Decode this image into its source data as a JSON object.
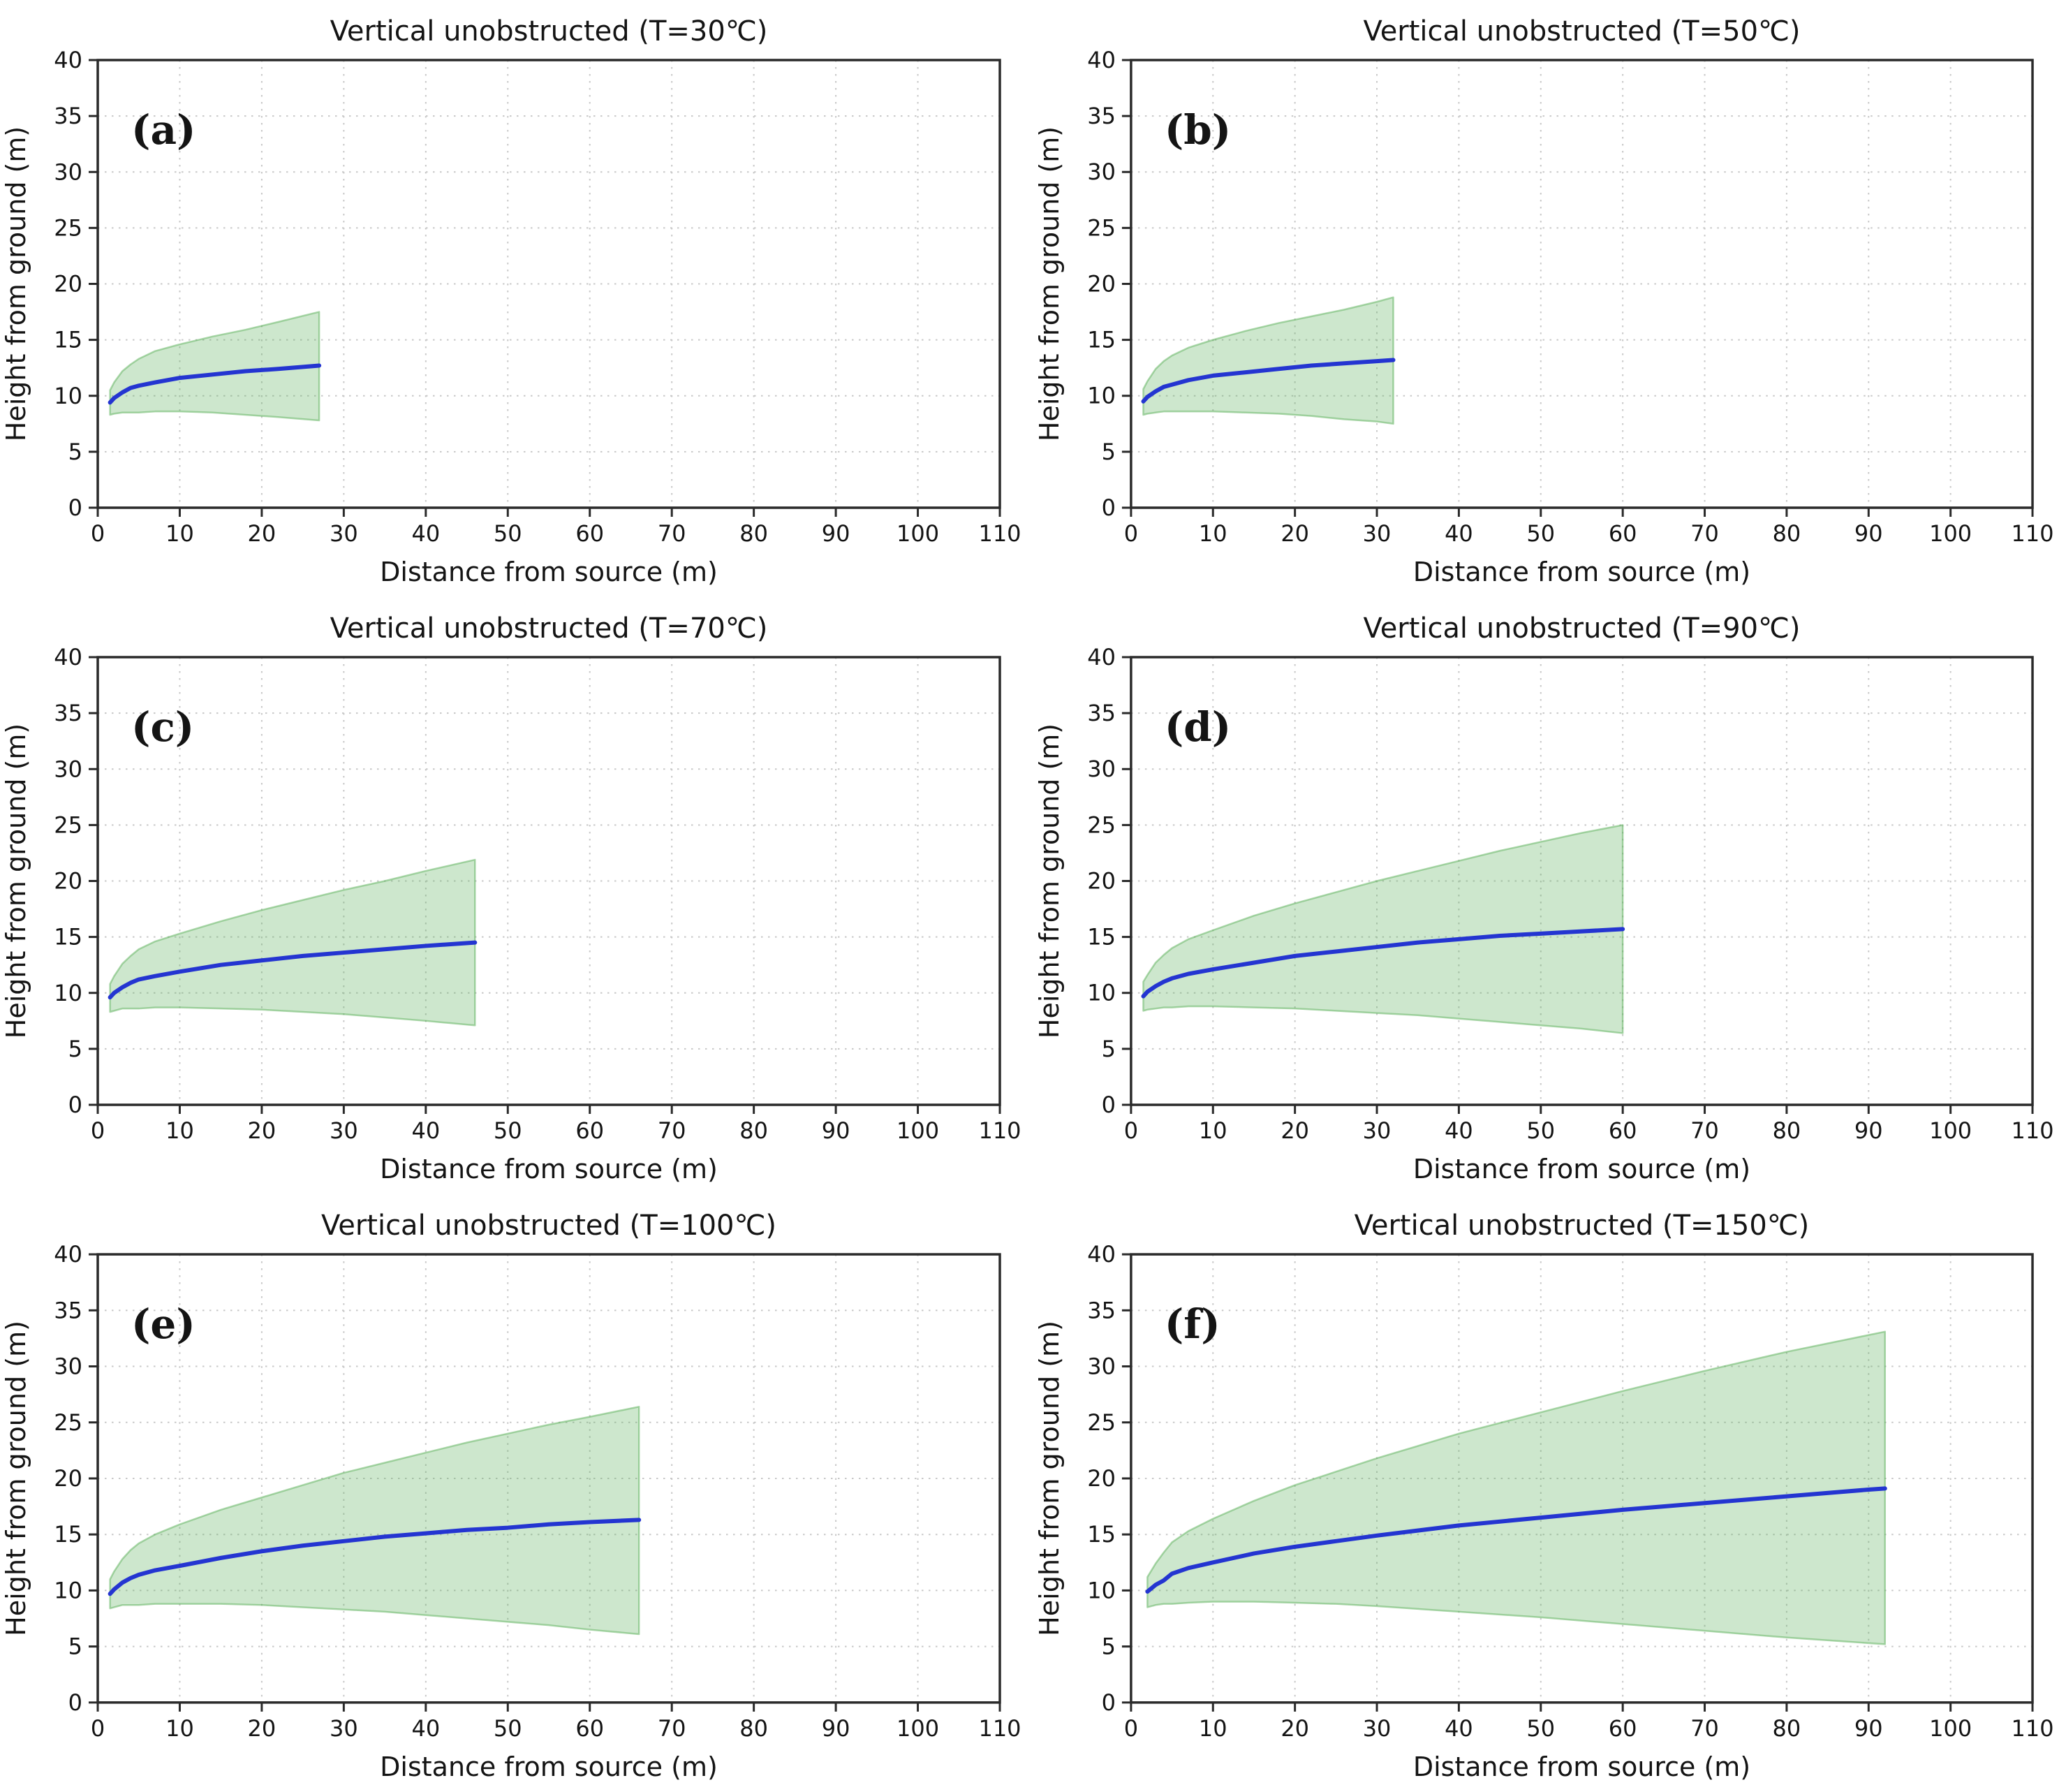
{
  "figure": {
    "x_label": "Distance from source (m)",
    "y_label": "Height from ground (m)",
    "xlim": [
      0,
      110
    ],
    "ylim": [
      0,
      40
    ],
    "x_ticks": [
      0,
      10,
      20,
      30,
      40,
      50,
      60,
      70,
      80,
      90,
      100,
      110
    ],
    "y_ticks": [
      0,
      5,
      10,
      15,
      20,
      25,
      30,
      35,
      40
    ],
    "colors": {
      "mean_line": "#2435d1",
      "band_green": "#5aaf58",
      "band_fill_opacity": 0.3,
      "band_edge_opacity": 0.5,
      "grid": "#c8c8c8",
      "spine": "#2a2a2a",
      "text": "#141414",
      "background": "#ffffff"
    }
  },
  "chart_data": [
    {
      "type": "line",
      "panel": "a",
      "label": "(a)",
      "title": "Vertical unobstructed (T=30℃)",
      "xlabel": "Distance from source (m)",
      "ylabel": "Height from ground (m)",
      "xlim": [
        0,
        110
      ],
      "ylim": [
        0,
        40
      ],
      "legend": "none",
      "grid": true,
      "x": [
        1.5,
        2,
        3,
        4,
        5,
        7,
        10,
        14,
        18,
        22,
        27
      ],
      "mean": [
        9.4,
        9.8,
        10.3,
        10.7,
        10.9,
        11.2,
        11.6,
        11.9,
        12.2,
        12.4,
        12.7
      ],
      "upper": [
        10.5,
        11.2,
        12.2,
        12.8,
        13.3,
        14.0,
        14.6,
        15.3,
        15.9,
        16.6,
        17.5
      ],
      "lower": [
        8.3,
        8.4,
        8.5,
        8.5,
        8.5,
        8.6,
        8.6,
        8.5,
        8.3,
        8.1,
        7.8
      ]
    },
    {
      "type": "line",
      "panel": "b",
      "label": "(b)",
      "title": "Vertical unobstructed (T=50℃)",
      "xlabel": "Distance from source (m)",
      "ylabel": "Height from ground (m)",
      "xlim": [
        0,
        110
      ],
      "ylim": [
        0,
        40
      ],
      "legend": "none",
      "grid": true,
      "x": [
        1.5,
        2,
        3,
        4,
        5,
        7,
        10,
        14,
        18,
        22,
        26,
        30,
        32
      ],
      "mean": [
        9.5,
        9.9,
        10.4,
        10.8,
        11.0,
        11.4,
        11.8,
        12.1,
        12.4,
        12.7,
        12.9,
        13.1,
        13.2
      ],
      "upper": [
        10.6,
        11.3,
        12.4,
        13.1,
        13.6,
        14.3,
        15.0,
        15.8,
        16.5,
        17.1,
        17.7,
        18.4,
        18.8
      ],
      "lower": [
        8.3,
        8.4,
        8.5,
        8.6,
        8.6,
        8.6,
        8.6,
        8.5,
        8.4,
        8.2,
        7.9,
        7.7,
        7.5
      ]
    },
    {
      "type": "line",
      "panel": "c",
      "label": "(c)",
      "title": "Vertical unobstructed (T=70℃)",
      "xlabel": "Distance from source (m)",
      "ylabel": "Height from ground (m)",
      "xlim": [
        0,
        110
      ],
      "ylim": [
        0,
        40
      ],
      "legend": "none",
      "grid": true,
      "x": [
        1.5,
        2,
        3,
        4,
        5,
        7,
        10,
        15,
        20,
        25,
        30,
        35,
        40,
        46
      ],
      "mean": [
        9.6,
        10.0,
        10.5,
        10.9,
        11.2,
        11.5,
        11.9,
        12.5,
        12.9,
        13.3,
        13.6,
        13.9,
        14.2,
        14.5
      ],
      "upper": [
        10.8,
        11.5,
        12.6,
        13.3,
        13.9,
        14.6,
        15.3,
        16.4,
        17.4,
        18.3,
        19.2,
        20.0,
        20.9,
        21.9
      ],
      "lower": [
        8.3,
        8.4,
        8.6,
        8.6,
        8.6,
        8.7,
        8.7,
        8.6,
        8.5,
        8.3,
        8.1,
        7.8,
        7.5,
        7.1
      ]
    },
    {
      "type": "line",
      "panel": "d",
      "label": "(d)",
      "title": "Vertical unobstructed (T=90℃)",
      "xlabel": "Distance from source (m)",
      "ylabel": "Height from ground (m)",
      "xlim": [
        0,
        110
      ],
      "ylim": [
        0,
        40
      ],
      "legend": "none",
      "grid": true,
      "x": [
        1.5,
        2,
        3,
        4,
        5,
        7,
        10,
        15,
        20,
        25,
        30,
        35,
        40,
        45,
        50,
        55,
        60
      ],
      "mean": [
        9.7,
        10.1,
        10.6,
        11.0,
        11.3,
        11.7,
        12.1,
        12.7,
        13.3,
        13.7,
        14.1,
        14.5,
        14.8,
        15.1,
        15.3,
        15.5,
        15.7
      ],
      "upper": [
        11.0,
        11.6,
        12.7,
        13.4,
        14.0,
        14.8,
        15.6,
        16.9,
        18.0,
        19.0,
        20.0,
        20.9,
        21.8,
        22.7,
        23.5,
        24.3,
        25.0
      ],
      "lower": [
        8.4,
        8.5,
        8.6,
        8.7,
        8.7,
        8.8,
        8.8,
        8.7,
        8.6,
        8.4,
        8.2,
        8.0,
        7.7,
        7.4,
        7.1,
        6.8,
        6.4
      ]
    },
    {
      "type": "line",
      "panel": "e",
      "label": "(e)",
      "title": "Vertical unobstructed (T=100℃)",
      "xlabel": "Distance from source (m)",
      "ylabel": "Height from ground (m)",
      "xlim": [
        0,
        110
      ],
      "ylim": [
        0,
        40
      ],
      "legend": "none",
      "grid": true,
      "x": [
        1.5,
        2,
        3,
        4,
        5,
        7,
        10,
        15,
        20,
        25,
        30,
        35,
        40,
        45,
        50,
        55,
        60,
        66
      ],
      "mean": [
        9.7,
        10.1,
        10.7,
        11.1,
        11.4,
        11.8,
        12.2,
        12.9,
        13.5,
        14.0,
        14.4,
        14.8,
        15.1,
        15.4,
        15.6,
        15.9,
        16.1,
        16.3
      ],
      "upper": [
        11.0,
        11.7,
        12.8,
        13.6,
        14.2,
        15.0,
        15.9,
        17.2,
        18.3,
        19.4,
        20.5,
        21.4,
        22.3,
        23.2,
        24.0,
        24.8,
        25.5,
        26.4
      ],
      "lower": [
        8.4,
        8.5,
        8.7,
        8.7,
        8.7,
        8.8,
        8.8,
        8.8,
        8.7,
        8.5,
        8.3,
        8.1,
        7.8,
        7.5,
        7.2,
        6.9,
        6.5,
        6.1
      ]
    },
    {
      "type": "line",
      "panel": "f",
      "label": "(f)",
      "title": "Vertical unobstructed (T=150℃)",
      "xlabel": "Distance from source (m)",
      "ylabel": "Height from ground (m)",
      "xlim": [
        0,
        110
      ],
      "ylim": [
        0,
        40
      ],
      "legend": "none",
      "grid": true,
      "x": [
        2,
        3,
        4,
        5,
        7,
        10,
        15,
        20,
        25,
        30,
        40,
        50,
        60,
        70,
        80,
        90,
        92
      ],
      "mean": [
        9.9,
        10.5,
        10.9,
        11.5,
        12.0,
        12.5,
        13.3,
        13.9,
        14.4,
        14.9,
        15.8,
        16.5,
        17.2,
        17.8,
        18.4,
        19.0,
        19.1
      ],
      "upper": [
        11.2,
        12.4,
        13.4,
        14.3,
        15.3,
        16.4,
        18.0,
        19.4,
        20.6,
        21.8,
        24.0,
        25.9,
        27.8,
        29.6,
        31.3,
        32.8,
        33.1
      ],
      "lower": [
        8.5,
        8.7,
        8.8,
        8.8,
        8.9,
        9.0,
        9.0,
        8.9,
        8.8,
        8.6,
        8.1,
        7.6,
        7.0,
        6.4,
        5.8,
        5.3,
        5.2
      ]
    }
  ]
}
